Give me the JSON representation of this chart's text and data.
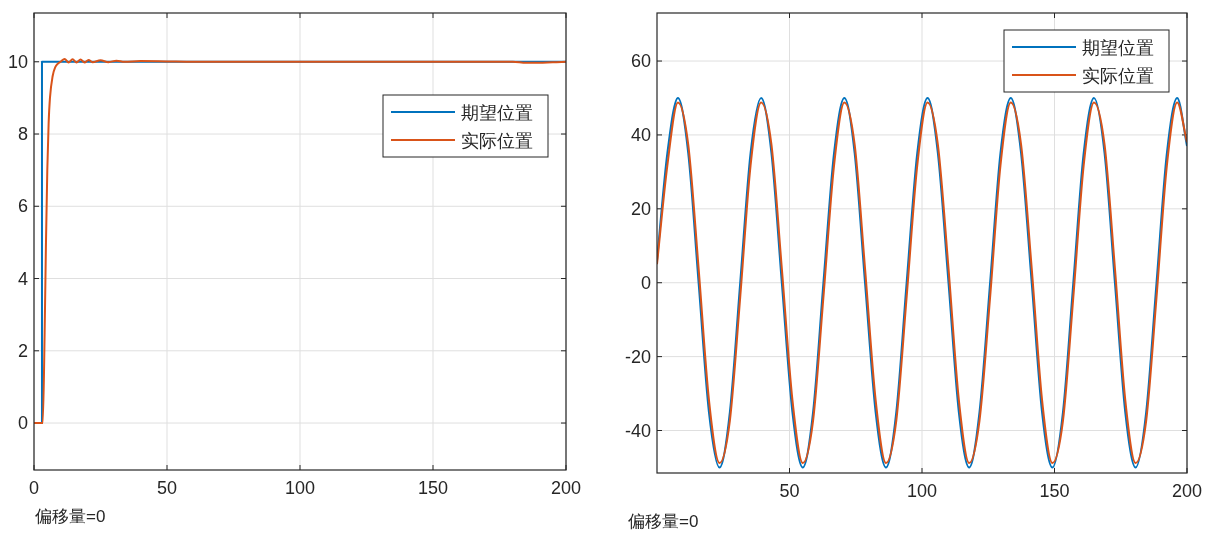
{
  "chart_data": [
    {
      "type": "line",
      "xlim": [
        0,
        200
      ],
      "ylim": [
        -1.3,
        11.35
      ],
      "xticks": [
        0,
        50,
        100,
        150,
        200
      ],
      "yticks": [
        0,
        2,
        4,
        6,
        8,
        10
      ],
      "grid": true,
      "legend": "right",
      "annotations": [
        "偏移量=0"
      ],
      "series": [
        {
          "name": "期望位置",
          "color": "#0072bd",
          "x": [
            0,
            3,
            3,
            200
          ],
          "values": [
            0,
            0,
            10,
            10
          ]
        },
        {
          "name": "实际位置",
          "color": "#d95319",
          "x": [
            0,
            3.3,
            4,
            4.5,
            5,
            5.5,
            6,
            7,
            8,
            9,
            10,
            11.5,
            13,
            14.5,
            16,
            17.5,
            19,
            20.5,
            22,
            25,
            28,
            31,
            34,
            40,
            50,
            60,
            80,
            100,
            150,
            180,
            185,
            190,
            195,
            200
          ],
          "values": [
            0,
            0,
            2.5,
            5,
            7,
            8.3,
            9,
            9.6,
            9.85,
            9.95,
            10,
            10.08,
            9.98,
            10.07,
            9.98,
            10.06,
            9.98,
            10.05,
            9.99,
            10.04,
            9.99,
            10.03,
            10,
            10.02,
            10.01,
            10,
            10,
            10,
            10,
            10,
            9.97,
            9.97,
            9.99,
            10
          ]
        }
      ]
    },
    {
      "type": "line",
      "xlim": [
        0,
        200
      ],
      "ylim": [
        -51.5,
        73
      ],
      "xticks": [
        50,
        100,
        150,
        200
      ],
      "yticks": [
        -40,
        -20,
        0,
        20,
        40,
        60
      ],
      "grid": true,
      "legend": "top right",
      "annotations": [
        "偏移量=0"
      ],
      "series": [
        {
          "name": "期望位置",
          "color": "#0072bd",
          "x": [
            0,
            3.9,
            7.9,
            11.8,
            15.7,
            19.6,
            23.6,
            27.5,
            31.4,
            35.3,
            39.3,
            43.2,
            47.1,
            51.1,
            55.0,
            58.9,
            62.8,
            66.8,
            70.7,
            74.6,
            78.5,
            82.5,
            86.4,
            90.3,
            94.2,
            98.2,
            102.1,
            106.0,
            110.0,
            113.9,
            117.8,
            121.7,
            125.7,
            129.6,
            133.5,
            137.4,
            141.4,
            145.3,
            149.2,
            153.2,
            157.1,
            161.0,
            164.9,
            168.9,
            172.8,
            176.7,
            180.6,
            184.6,
            188.5,
            192.4,
            196.3,
            200
          ],
          "values": [
            6,
            35,
            50,
            35,
            0,
            -35,
            -50,
            -35,
            0,
            35,
            50,
            35,
            0,
            -35,
            -50,
            -35,
            0,
            35,
            50,
            35,
            0,
            -35,
            -50,
            -35,
            0,
            35,
            50,
            35,
            0,
            -35,
            -50,
            -35,
            0,
            35,
            50,
            35,
            0,
            -35,
            -50,
            -35,
            0,
            35,
            50,
            35,
            0,
            -35,
            -50,
            -35,
            0,
            35,
            50,
            37
          ]
        },
        {
          "name": "实际位置",
          "color": "#d95319",
          "x": [
            0,
            3.9,
            7.9,
            11.8,
            15.7,
            19.6,
            23.6,
            27.5,
            31.4,
            35.3,
            39.3,
            43.2,
            47.1,
            51.1,
            55.0,
            58.9,
            62.8,
            66.8,
            70.7,
            74.6,
            78.5,
            82.5,
            86.4,
            90.3,
            94.2,
            98.2,
            102.1,
            106.0,
            110.0,
            113.9,
            117.8,
            121.7,
            125.7,
            129.6,
            133.5,
            137.4,
            141.4,
            145.3,
            149.2,
            153.2,
            157.1,
            161.0,
            164.9,
            168.9,
            172.8,
            176.7,
            180.6,
            184.6,
            188.5,
            192.4,
            196.3,
            200
          ],
          "values": [
            5,
            31.7,
            48.8,
            37.3,
            3.9,
            -31.7,
            -48.8,
            -37.3,
            -3.9,
            31.7,
            48.8,
            37.3,
            3.9,
            -31.7,
            -48.8,
            -37.3,
            -3.9,
            31.7,
            48.8,
            37.3,
            3.9,
            -31.7,
            -48.8,
            -37.3,
            -3.9,
            31.7,
            48.8,
            37.3,
            3.9,
            -31.7,
            -48.8,
            -37.3,
            -3.9,
            31.7,
            48.8,
            37.3,
            3.9,
            -31.7,
            -48.8,
            -37.3,
            -3.9,
            31.7,
            48.8,
            37.3,
            3.9,
            -31.7,
            -48.8,
            -37.3,
            -3.9,
            31.7,
            48.8,
            38
          ]
        }
      ]
    }
  ]
}
